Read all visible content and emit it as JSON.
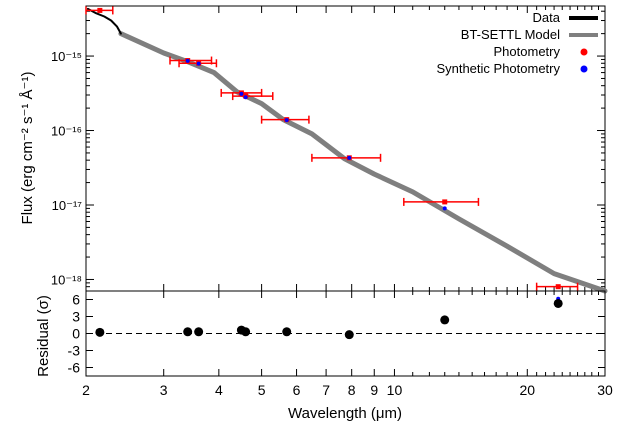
{
  "chart_data": [
    {
      "type": "line",
      "panel": "spectrum",
      "ylabel": "Flux (erg cm⁻² s⁻¹ Å⁻¹)",
      "y_scale": "log",
      "x_scale": "log",
      "ylim": [
        7e-19,
        4.7e-15
      ],
      "xlim": [
        2,
        30
      ],
      "y_tick_labels": [
        "10⁻¹⁵",
        "10⁻¹⁶",
        "10⁻¹⁷",
        "10⁻¹⁸"
      ],
      "legend": {
        "placement": "top-right",
        "entries": [
          {
            "label": "Data",
            "color": "#000000",
            "marker": "line"
          },
          {
            "label": "BT-SETTL Model",
            "color": "#7f7f7f",
            "marker": "line"
          },
          {
            "label": "Photometry",
            "color": "#ff0000",
            "marker": "dot"
          },
          {
            "label": "Synthetic Photometry",
            "color": "#0000ff",
            "marker": "dot"
          }
        ]
      },
      "series": [
        {
          "name": "Data",
          "color": "#000000",
          "x": [
            2.02,
            2.1,
            2.2,
            2.28,
            2.35,
            2.4
          ],
          "y": [
            4.3e-15,
            3.8e-15,
            3.4e-15,
            3e-15,
            2.5e-15,
            2e-15
          ]
        },
        {
          "name": "BT-SETTL Model",
          "color": "#7f7f7f",
          "x": [
            2.4,
            3.0,
            3.4,
            3.9,
            4.4,
            5.0,
            5.6,
            6.5,
            7.7,
            9.0,
            11.0,
            14.0,
            18.0,
            23.0,
            30.0
          ],
          "y": [
            2e-15,
            1.1e-15,
            8.4e-16,
            6e-16,
            3.3e-16,
            2.3e-16,
            1.4e-16,
            9e-17,
            4.2e-17,
            2.6e-17,
            1.5e-17,
            6.5e-18,
            2.8e-18,
            1.2e-18,
            7e-19
          ]
        }
      ],
      "photometry": {
        "color": "#ff0000",
        "points": [
          {
            "x": 2.15,
            "y": 4.1e-15,
            "xerr": [
              2.0,
              2.3
            ]
          },
          {
            "x": 3.4,
            "y": 8.7e-16,
            "xerr": [
              3.1,
              3.85
            ]
          },
          {
            "x": 3.6,
            "y": 8e-16,
            "xerr": [
              3.25,
              3.95
            ]
          },
          {
            "x": 4.5,
            "y": 3.2e-16,
            "xerr": [
              4.05,
              5.0
            ]
          },
          {
            "x": 4.6,
            "y": 2.9e-16,
            "xerr": [
              4.3,
              5.3
            ]
          },
          {
            "x": 5.7,
            "y": 1.4e-16,
            "xerr": [
              5.0,
              6.4
            ]
          },
          {
            "x": 7.9,
            "y": 4.3e-17,
            "xerr": [
              6.5,
              9.3
            ]
          },
          {
            "x": 13.0,
            "y": 1.1e-17,
            "xerr": [
              10.5,
              15.5
            ]
          },
          {
            "x": 23.5,
            "y": 8e-19,
            "xerr": [
              21.0,
              26.0
            ]
          }
        ]
      },
      "synthetic_photometry": {
        "color": "#0000ff",
        "points": [
          {
            "x": 3.4,
            "y": 8.6e-16
          },
          {
            "x": 3.6,
            "y": 7.9e-16
          },
          {
            "x": 4.5,
            "y": 3.1e-16
          },
          {
            "x": 4.6,
            "y": 2.8e-16
          },
          {
            "x": 5.7,
            "y": 1.38e-16
          },
          {
            "x": 7.9,
            "y": 4.3e-17
          },
          {
            "x": 13.0,
            "y": 9e-18
          },
          {
            "x": 23.5,
            "y": 5.5e-19
          }
        ]
      }
    },
    {
      "type": "scatter",
      "panel": "residual",
      "ylabel": "Residual (σ)",
      "xlabel": "Wavelength (μm)",
      "x_scale": "log",
      "xlim": [
        2,
        30
      ],
      "ylim": [
        -7.5,
        7.5
      ],
      "y_ticks": [
        6,
        3,
        0,
        -3,
        -6
      ],
      "x_ticks": [
        2,
        3,
        4,
        5,
        6,
        7,
        8,
        9,
        10,
        20,
        30
      ],
      "zero_line": "dashed",
      "points": [
        {
          "x": 2.15,
          "y": 0.2
        },
        {
          "x": 3.4,
          "y": 0.3
        },
        {
          "x": 3.6,
          "y": 0.3
        },
        {
          "x": 4.5,
          "y": 0.6
        },
        {
          "x": 4.6,
          "y": 0.3
        },
        {
          "x": 5.7,
          "y": 0.3
        },
        {
          "x": 7.9,
          "y": -0.2
        },
        {
          "x": 13.0,
          "y": 2.4
        },
        {
          "x": 23.5,
          "y": 5.3
        }
      ]
    }
  ]
}
